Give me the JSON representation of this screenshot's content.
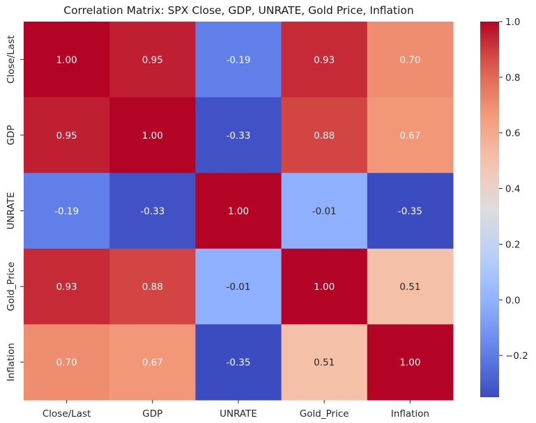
{
  "chart_data": {
    "type": "heatmap",
    "title": "Correlation Matrix: SPX Close, GDP, UNRATE, Gold Price, Inflation",
    "xlabels": [
      "Close/Last",
      "GDP",
      "UNRATE",
      "Gold_Price",
      "Inflation"
    ],
    "ylabels": [
      "Close/Last",
      "GDP",
      "UNRATE",
      "Gold_Price",
      "Inflation"
    ],
    "values": [
      [
        1.0,
        0.95,
        -0.19,
        0.93,
        0.7
      ],
      [
        0.95,
        1.0,
        -0.33,
        0.88,
        0.67
      ],
      [
        -0.19,
        -0.33,
        1.0,
        -0.01,
        -0.35
      ],
      [
        0.93,
        0.88,
        -0.01,
        1.0,
        0.51
      ],
      [
        0.7,
        0.67,
        -0.35,
        0.51,
        1.0
      ]
    ],
    "annotation_format": "0.00",
    "colormap": "coolwarm",
    "colorbar": {
      "range": [
        -0.35,
        1.0
      ],
      "ticks": [
        -0.2,
        0.0,
        0.2,
        0.4,
        0.6,
        0.8,
        1.0
      ],
      "tick_labels": [
        "−0.2",
        "0.0",
        "0.2",
        "0.4",
        "0.6",
        "0.8",
        "1.0"
      ]
    }
  }
}
